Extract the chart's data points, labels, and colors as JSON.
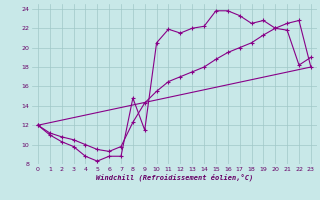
{
  "xlabel": "Windchill (Refroidissement éolien,°C)",
  "background_color": "#c8e8e8",
  "grid_color": "#a0c8c8",
  "line_color": "#880088",
  "xlim": [
    -0.5,
    23.5
  ],
  "ylim": [
    8,
    24.5
  ],
  "yticks": [
    8,
    10,
    12,
    14,
    16,
    18,
    20,
    22,
    24
  ],
  "xticks": [
    0,
    1,
    2,
    3,
    4,
    5,
    6,
    7,
    8,
    9,
    10,
    11,
    12,
    13,
    14,
    15,
    16,
    17,
    18,
    19,
    20,
    21,
    22,
    23
  ],
  "line1_x": [
    0,
    1,
    2,
    3,
    4,
    5,
    6,
    7,
    8,
    9,
    10,
    11,
    12,
    13,
    14,
    15,
    16,
    17,
    18,
    19,
    20,
    21,
    22,
    23
  ],
  "line1_y": [
    12.0,
    11.0,
    10.3,
    9.8,
    8.8,
    8.3,
    8.8,
    8.8,
    14.8,
    11.5,
    20.5,
    21.9,
    21.5,
    22.0,
    22.2,
    23.8,
    23.8,
    23.3,
    22.5,
    22.8,
    22.0,
    21.8,
    18.2,
    19.0
  ],
  "line2_x": [
    0,
    1,
    2,
    3,
    4,
    5,
    6,
    7,
    8,
    9,
    10,
    11,
    12,
    13,
    14,
    15,
    16,
    17,
    18,
    19,
    20,
    21,
    22,
    23
  ],
  "line2_y": [
    12.0,
    11.2,
    10.8,
    10.5,
    10.0,
    9.5,
    9.3,
    9.8,
    12.3,
    14.3,
    15.5,
    16.5,
    17.0,
    17.5,
    18.0,
    18.8,
    19.5,
    20.0,
    20.5,
    21.3,
    22.0,
    22.5,
    22.8,
    18.0
  ],
  "line3_x": [
    0,
    23
  ],
  "line3_y": [
    12.0,
    18.0
  ]
}
